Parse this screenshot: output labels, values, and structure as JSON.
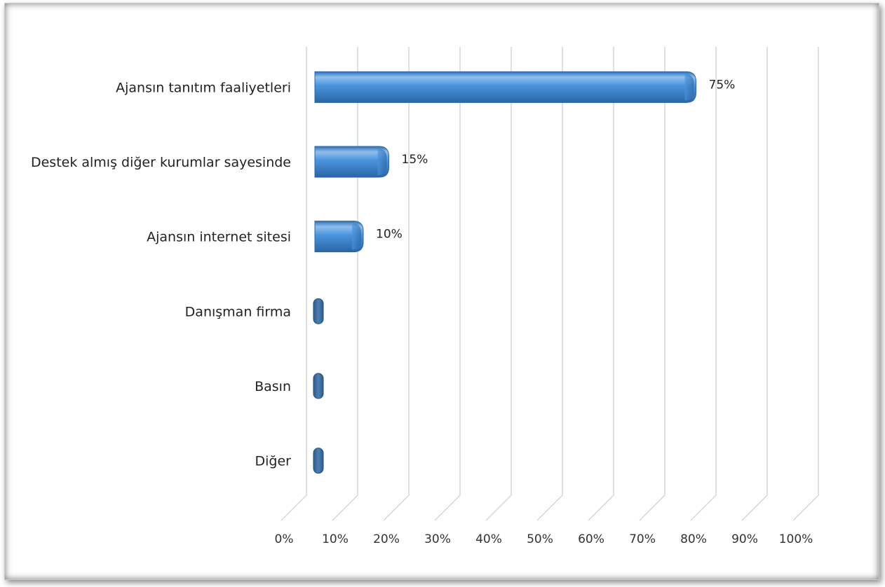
{
  "chart_data": {
    "type": "bar",
    "orientation": "horizontal",
    "categories": [
      "Ajansın tanıtım faaliyetleri",
      "Destek almış diğer kurumlar sayesinde",
      "Ajansın internet sitesi",
      "Danışman firma",
      "Basın",
      "Diğer"
    ],
    "values": [
      75,
      15,
      10,
      0,
      0,
      0
    ],
    "data_labels": [
      "75%",
      "15%",
      "10%",
      "",
      "",
      ""
    ],
    "x_ticks": [
      "0%",
      "10%",
      "20%",
      "30%",
      "40%",
      "50%",
      "60%",
      "70%",
      "80%",
      "90%",
      "100%"
    ],
    "xlim": [
      0,
      100
    ],
    "title": "",
    "xlabel": "",
    "ylabel": "",
    "grid": true,
    "legend": "none",
    "colors": {
      "bar": "#4a90d9",
      "bar_dark": "#2c6aa8",
      "bar_empty": "#3d6b9a",
      "grid": "#d6d6d6"
    }
  }
}
